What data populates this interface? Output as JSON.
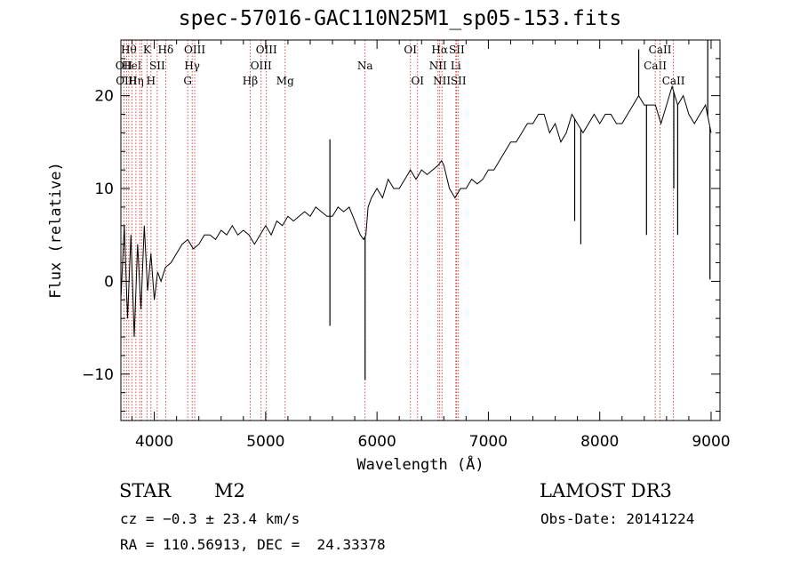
{
  "chart_data": {
    "type": "line",
    "title": "spec-57016-GAC110N25M1_sp05-153.fits",
    "xlabel": "Wavelength (Å)",
    "ylabel": "Flux (relative)",
    "xlim": [
      3700,
      9080
    ],
    "ylim": [
      -15,
      26
    ],
    "xticks": [
      4000,
      5000,
      6000,
      7000,
      8000,
      9000
    ],
    "yticks": [
      -10,
      0,
      10,
      20
    ],
    "grid": false,
    "spectrum": {
      "x": [
        3700,
        3730,
        3760,
        3790,
        3820,
        3850,
        3880,
        3910,
        3940,
        3970,
        4000,
        4030,
        4060,
        4100,
        4150,
        4200,
        4250,
        4300,
        4350,
        4400,
        4450,
        4500,
        4550,
        4600,
        4650,
        4700,
        4750,
        4800,
        4850,
        4900,
        4950,
        5000,
        5050,
        5100,
        5150,
        5200,
        5250,
        5300,
        5350,
        5400,
        5450,
        5500,
        5550,
        5600,
        5650,
        5700,
        5750,
        5800,
        5850,
        5880,
        5900,
        5920,
        5950,
        6000,
        6050,
        6100,
        6150,
        6200,
        6250,
        6300,
        6350,
        6400,
        6450,
        6500,
        6550,
        6580,
        6600,
        6650,
        6700,
        6750,
        6800,
        6850,
        6900,
        6950,
        7000,
        7050,
        7100,
        7150,
        7200,
        7250,
        7300,
        7350,
        7400,
        7450,
        7500,
        7550,
        7600,
        7650,
        7700,
        7750,
        7800,
        7850,
        7900,
        7950,
        8000,
        8050,
        8100,
        8150,
        8200,
        8250,
        8300,
        8350,
        8400,
        8450,
        8500,
        8550,
        8600,
        8650,
        8700,
        8750,
        8800,
        8850,
        8900,
        8950,
        9000
      ],
      "y": [
        -2,
        6,
        -4,
        5,
        -6,
        4,
        -3,
        6,
        -1,
        3,
        -2,
        1,
        0,
        1.5,
        2,
        3,
        4,
        4.5,
        3.5,
        4,
        5,
        5,
        4.5,
        5.5,
        5,
        6,
        5,
        5.5,
        5,
        4,
        5,
        6,
        5,
        6.5,
        6,
        7,
        6.5,
        7,
        7.5,
        7,
        8,
        7.5,
        7,
        7,
        8,
        7.5,
        8,
        6.5,
        5,
        4.5,
        5,
        8,
        9,
        10,
        9,
        11,
        10,
        10,
        11,
        12,
        11,
        12,
        11.5,
        12,
        12.5,
        13,
        12.5,
        10,
        9,
        10,
        10,
        11,
        10.5,
        11,
        12,
        12,
        13,
        14,
        15,
        15,
        16,
        17,
        17,
        18,
        18,
        16,
        17,
        15,
        16,
        18,
        17,
        16,
        17,
        18,
        17,
        18,
        18,
        17,
        17,
        18,
        19,
        20,
        19,
        19,
        19,
        17,
        19,
        21,
        19,
        20,
        18,
        17,
        18,
        19,
        16
      ]
    },
    "spikes": [
      {
        "x": 5577,
        "y": 15.3
      },
      {
        "x": 5577,
        "y": -4.8
      },
      {
        "x": 5893,
        "y": -10.6
      },
      {
        "x": 7775,
        "y": 6.5
      },
      {
        "x": 7830,
        "y": 4.0
      },
      {
        "x": 8350,
        "y": 25
      },
      {
        "x": 8420,
        "y": 5
      },
      {
        "x": 8665,
        "y": 10
      },
      {
        "x": 8700,
        "y": 5
      },
      {
        "x": 8970,
        "y": 26
      },
      {
        "x": 8990,
        "y": 0.2
      }
    ],
    "lines": [
      {
        "x": 3727,
        "label": "OII",
        "row": 1
      },
      {
        "x": 3750,
        "label": "OIII",
        "row": 2
      },
      {
        "x": 3771,
        "label": "Hθ",
        "row": 0
      },
      {
        "x": 3798,
        "label": "HeI",
        "row": 1
      },
      {
        "x": 3835,
        "label": "Hη",
        "row": 2
      },
      {
        "x": 3869,
        "label": "",
        "row": 0
      },
      {
        "x": 3889,
        "label": "",
        "row": 0
      },
      {
        "x": 3934,
        "label": "K",
        "row": 0
      },
      {
        "x": 3970,
        "label": "H",
        "row": 2
      },
      {
        "x": 4026,
        "label": "SII",
        "row": 1
      },
      {
        "x": 4102,
        "label": "Hδ",
        "row": 0
      },
      {
        "x": 4300,
        "label": "G",
        "row": 2
      },
      {
        "x": 4340,
        "label": "Hγ",
        "row": 1
      },
      {
        "x": 4363,
        "label": "OIII",
        "row": 0
      },
      {
        "x": 4861,
        "label": "Hβ",
        "row": 2
      },
      {
        "x": 4959,
        "label": "OIII",
        "row": 1
      },
      {
        "x": 5007,
        "label": "OIII",
        "row": 0
      },
      {
        "x": 5175,
        "label": "Mg",
        "row": 2
      },
      {
        "x": 5893,
        "label": "Na",
        "row": 1
      },
      {
        "x": 6300,
        "label": "OI",
        "row": 0
      },
      {
        "x": 6364,
        "label": "OI",
        "row": 2
      },
      {
        "x": 6548,
        "label": "NII",
        "row": 1
      },
      {
        "x": 6563,
        "label": "Hα",
        "row": 0
      },
      {
        "x": 6583,
        "label": "NII",
        "row": 2
      },
      {
        "x": 6708,
        "label": "Li",
        "row": 1
      },
      {
        "x": 6716,
        "label": "SII",
        "row": 0
      },
      {
        "x": 6731,
        "label": "SII",
        "row": 2
      },
      {
        "x": 8498,
        "label": "CaII",
        "row": 1
      },
      {
        "x": 8542,
        "label": "CaII",
        "row": 0
      },
      {
        "x": 8662,
        "label": "CaII",
        "row": 2
      }
    ]
  },
  "labels": {
    "title": "spec-57016-GAC110N25M1_sp05-153.fits",
    "class": "STAR",
    "subclass": "M2",
    "survey": "LAMOST DR3",
    "cz": "cz = −0.3 ± 23.4 km/s",
    "obs_date": "Obs-Date: 20141224",
    "coords": "RA = 110.56913, DEC =  24.33378"
  }
}
